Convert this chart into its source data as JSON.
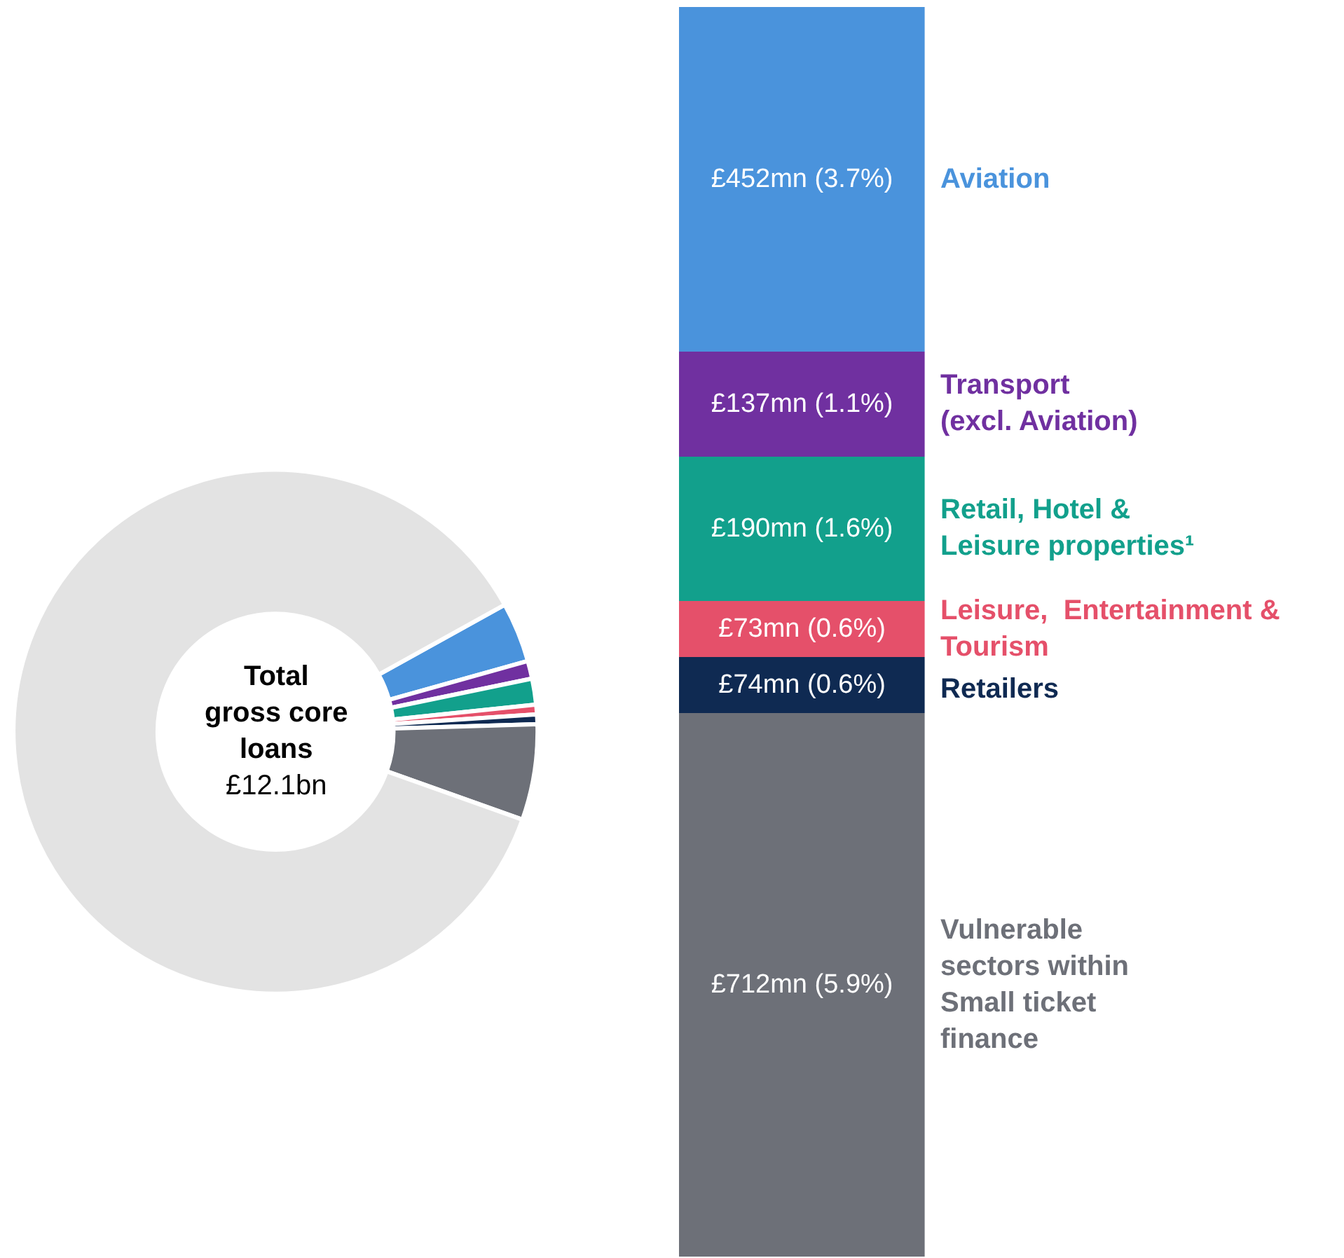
{
  "chart_data": [
    {
      "type": "donut",
      "title": "Total\ngross core\nloans",
      "subtitle": "£12.1bn",
      "categories": [
        null,
        null,
        null,
        null,
        null,
        null,
        null
      ],
      "values": [
        3.7,
        1.1,
        1.6,
        0.6,
        0.6,
        5.9,
        86.5
      ],
      "colors": [
        "#4a93dc",
        "#7030a0",
        "#12a08c",
        "#e5506a",
        "#0f2a52",
        "#6d7078",
        "#e3e3e3"
      ]
    },
    {
      "type": "bar",
      "stacked": true,
      "categories": [
        null
      ],
      "tick_labels": false,
      "series": [
        {
          "name": "Vulnerable\nsectors within\nSmall ticket\nfinance",
          "color": "#6d7078",
          "values": [
            712000000
          ],
          "value_labels": [
            "£712mn (5.9%)"
          ]
        },
        {
          "name": "Retailers",
          "color": "#0f2a52",
          "values": [
            74000000
          ],
          "value_labels": [
            "£74mn (0.6%)"
          ]
        },
        {
          "name": "Leisure,  Entertainment &\nTourism",
          "color": "#e5506a",
          "values": [
            73000000
          ],
          "value_labels": [
            "£73mn (0.6%)"
          ]
        },
        {
          "name": "Retail, Hotel &\nLeisure properties¹",
          "color": "#12a08c",
          "values": [
            190000000
          ],
          "value_labels": [
            "£190mn (1.6%)"
          ]
        },
        {
          "name": "Transport\n(excl. Aviation)",
          "color": "#7030a0",
          "values": [
            137000000
          ],
          "value_labels": [
            "£137mn (1.1%)"
          ]
        },
        {
          "name": "Aviation",
          "color": "#4a93dc",
          "values": [
            452000000
          ],
          "value_labels": [
            "£452mn (3.7%)"
          ]
        }
      ]
    }
  ]
}
